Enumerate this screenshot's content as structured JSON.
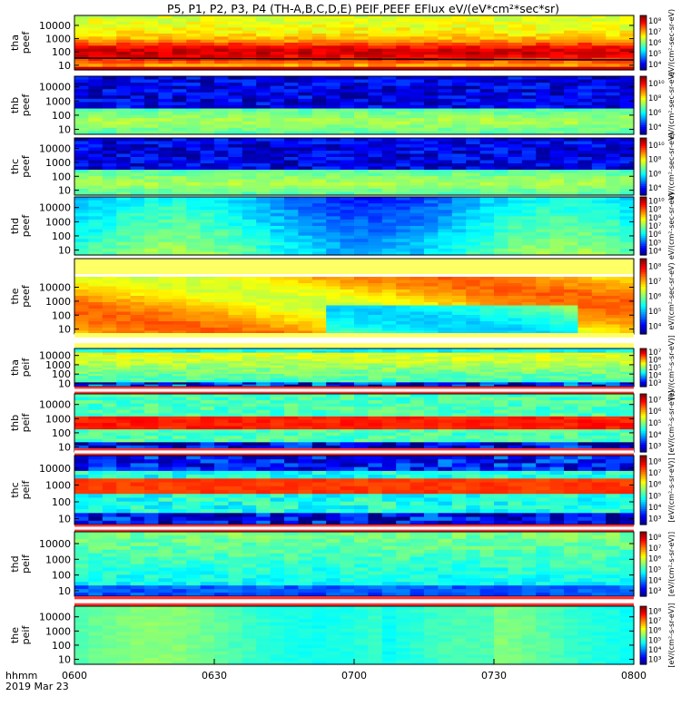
{
  "chart_data": {
    "type": "heatmap",
    "title": "P5, P1, P2, P3, P4 (TH-A,B,C,D,E) PEIF,PEEF EFlux eV/(eV*cm²*sec*sr)",
    "x_ticks": [
      "0600",
      "0630",
      "0700",
      "0730",
      "0800"
    ],
    "time_label": "hhmm",
    "date_label": "2019 Mar 23",
    "y_axis": "energy (log)",
    "y_ticks": [
      "10",
      "100",
      "1000",
      "10000"
    ],
    "colorbar_unit_electron": "eV/(cm²-sec-sr-eV)",
    "colorbar_unit_ion": "[eV/(cm²-s-sr-eV)]",
    "colorscale": "rainbow",
    "panels": [
      {
        "label": [
          "thа",
          "peef"
        ],
        "cb_ticks": [
          "10⁴",
          "10⁵",
          "10⁶",
          "10⁷",
          "10⁸"
        ],
        "cb_range": [
          4,
          8.5
        ]
      },
      {
        "label": [
          "thb",
          "peef"
        ],
        "cb_ticks": [
          "10⁴",
          "10⁶",
          "10⁸",
          "10¹⁰"
        ],
        "cb_range": [
          3.5,
          10.5
        ]
      },
      {
        "label": [
          "thc",
          "peef"
        ],
        "cb_ticks": [
          "10⁴",
          "10⁶",
          "10⁸",
          "10¹⁰"
        ],
        "cb_range": [
          3.5,
          10.5
        ]
      },
      {
        "label": [
          "thd",
          "peef"
        ],
        "cb_ticks": [
          "10⁴",
          "10⁵",
          "10⁶",
          "10⁷",
          "10⁸",
          "10⁹",
          "10¹⁰"
        ],
        "cb_range": [
          4,
          10.5
        ]
      },
      {
        "label": [
          "the",
          "peef"
        ],
        "cb_ticks": [
          "10⁴",
          "10⁵",
          "10⁶",
          "10⁷",
          "10⁸"
        ],
        "cb_range": [
          4,
          8.5
        ]
      },
      {
        "label": [
          "tha",
          "peif"
        ],
        "cb_ticks": [
          "10³",
          "10⁴",
          "10⁵",
          "10⁶",
          "10⁷"
        ],
        "cb_range": [
          3,
          7.5
        ]
      },
      {
        "label": [
          "thb",
          "peif"
        ],
        "cb_ticks": [
          "10³",
          "10⁴",
          "10⁵",
          "10⁶",
          "10⁷"
        ],
        "cb_range": [
          3,
          7.5
        ]
      },
      {
        "label": [
          "thc",
          "peif"
        ],
        "cb_ticks": [
          "10³",
          "10⁴",
          "10⁵",
          "10⁶",
          "10⁷",
          "10⁸"
        ],
        "cb_range": [
          3,
          8.5
        ]
      },
      {
        "label": [
          "thd",
          "peif"
        ],
        "cb_ticks": [
          "10³",
          "10⁴",
          "10⁵",
          "10⁶",
          "10⁷",
          "10⁸"
        ],
        "cb_range": [
          3,
          8.5
        ]
      },
      {
        "label": [
          "the",
          "peif"
        ],
        "cb_ticks": [
          "10³",
          "10⁴",
          "10⁵",
          "10⁶",
          "10⁷",
          "10⁸"
        ],
        "cb_range": [
          3,
          8.5
        ]
      }
    ]
  }
}
